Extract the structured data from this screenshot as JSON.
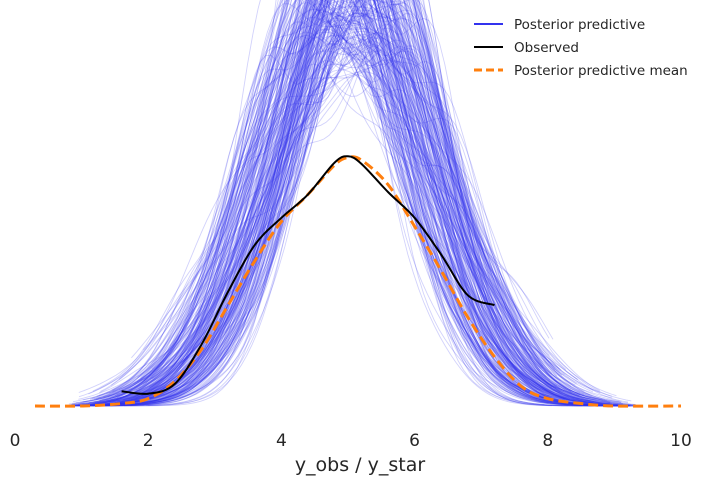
{
  "chart_data": {
    "type": "line",
    "title": "",
    "xlabel": "y_obs / y_star",
    "ylabel": "",
    "xlim": [
      0,
      10
    ],
    "x_ticks": [
      "0",
      "2",
      "4",
      "6",
      "8",
      "10"
    ],
    "grid": false,
    "legend_position": "top-right",
    "colors": {
      "posterior_predictive": "#3333ee",
      "observed": "#000000",
      "posterior_predictive_mean": "#ff7f0e"
    },
    "series": [
      {
        "name": "Posterior predictive",
        "style": "thin translucent blue lines (many draws)",
        "draws": 250,
        "center_range": [
          4.5,
          5.5
        ],
        "peak_density_range": [
          0.17,
          0.29
        ]
      },
      {
        "name": "Observed",
        "x": [
          1.6,
          2.0,
          2.4,
          2.8,
          3.2,
          3.6,
          4.0,
          4.4,
          4.8,
          5.0,
          5.2,
          5.6,
          6.0,
          6.4,
          6.8,
          7.2
        ],
        "y": [
          0.012,
          0.01,
          0.018,
          0.05,
          0.093,
          0.131,
          0.153,
          0.172,
          0.198,
          0.203,
          0.197,
          0.174,
          0.153,
          0.123,
          0.09,
          0.082
        ]
      },
      {
        "name": "Posterior predictive mean",
        "x": [
          0.3,
          1.0,
          1.6,
          2.0,
          2.4,
          2.8,
          3.2,
          3.6,
          4.0,
          4.4,
          4.8,
          5.0,
          5.2,
          5.6,
          6.0,
          6.4,
          6.8,
          7.2,
          7.6,
          8.0,
          8.5,
          9.0,
          10.0
        ],
        "y": [
          0.0,
          0.0,
          0.002,
          0.006,
          0.02,
          0.046,
          0.082,
          0.118,
          0.15,
          0.172,
          0.196,
          0.202,
          0.2,
          0.18,
          0.146,
          0.11,
          0.072,
          0.04,
          0.016,
          0.006,
          0.002,
          0.0,
          0.0
        ]
      }
    ]
  }
}
